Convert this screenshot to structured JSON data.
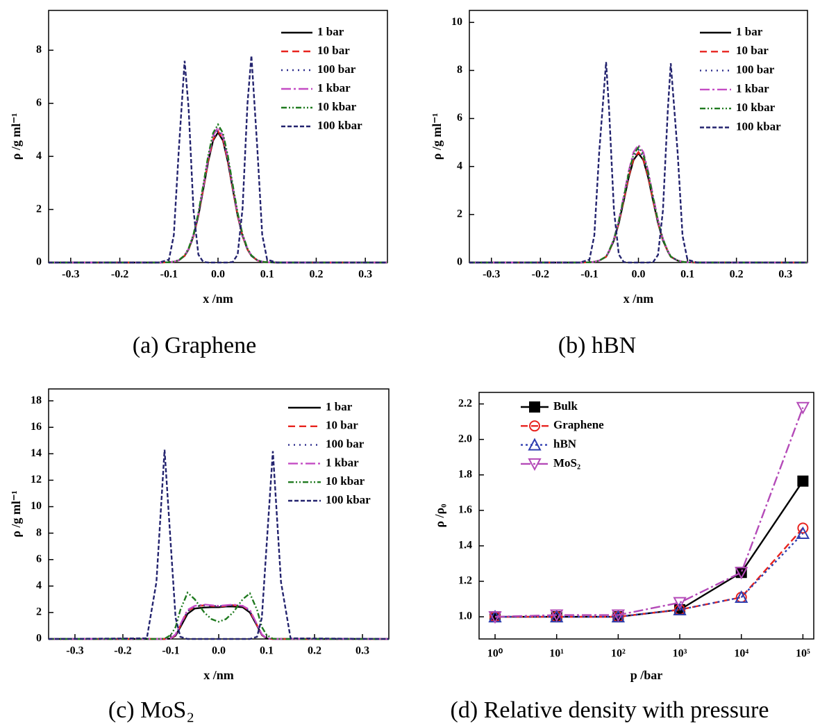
{
  "chart_data": [
    {
      "type": "line",
      "caption": "(a) Graphene",
      "xlabel": "x /nm",
      "ylabel": "ρ /g ml⁻¹",
      "x": [
        -0.345,
        -0.12,
        -0.1,
        -0.09,
        -0.08,
        -0.068,
        -0.06,
        -0.05,
        -0.04,
        -0.03,
        -0.02,
        -0.01,
        0,
        0.01,
        0.02,
        0.03,
        0.04,
        0.05,
        0.06,
        0.068,
        0.08,
        0.09,
        0.1,
        0.12,
        0.345
      ],
      "xlim": [
        -0.345,
        0.345
      ],
      "ylim": [
        0,
        9.5
      ],
      "xticks": [
        -0.3,
        -0.2,
        -0.1,
        {
          "value": 0,
          "label": "0.0"
        },
        0.1,
        0.2,
        0.3
      ],
      "yticks": [
        0,
        2,
        4,
        6,
        8
      ],
      "series": [
        {
          "name": "1 bar",
          "color": "#000000",
          "dash": "none",
          "values": [
            0,
            0,
            0.01,
            0.03,
            0.08,
            0.25,
            0.49,
            0.99,
            1.76,
            2.76,
            3.8,
            4.6,
            4.9,
            4.6,
            3.8,
            2.76,
            1.76,
            0.99,
            0.49,
            0.25,
            0.08,
            0.03,
            0.01,
            0,
            0
          ]
        },
        {
          "name": "10 bar",
          "color": "#e8231e",
          "dash": "10,6",
          "values": [
            0,
            0,
            0.01,
            0.03,
            0.08,
            0.26,
            0.5,
            1.0,
            1.78,
            2.79,
            3.84,
            4.64,
            4.95,
            4.64,
            3.84,
            2.79,
            1.78,
            1.0,
            0.5,
            0.26,
            0.08,
            0.03,
            0.01,
            0,
            0
          ]
        },
        {
          "name": "100 bar",
          "color": "#2b2b8c",
          "dash": "2,6",
          "values": [
            0,
            0,
            0.01,
            0.03,
            0.09,
            0.26,
            0.51,
            1.02,
            1.8,
            2.82,
            3.88,
            4.69,
            5.0,
            4.69,
            3.88,
            2.82,
            1.8,
            1.02,
            0.51,
            0.26,
            0.09,
            0.03,
            0.01,
            0,
            0
          ]
        },
        {
          "name": "1 kbar",
          "color": "#c44cc4",
          "dash": "14,4,3,4",
          "values": [
            0,
            0,
            0.01,
            0.03,
            0.09,
            0.27,
            0.52,
            1.04,
            1.84,
            2.87,
            3.95,
            4.78,
            5.1,
            4.78,
            3.95,
            2.87,
            1.84,
            1.04,
            0.52,
            0.27,
            0.09,
            0.03,
            0.01,
            0,
            0
          ]
        },
        {
          "name": "10 kbar",
          "color": "#1f7a1f",
          "dash": "8,3,2,3,2,3",
          "values": [
            0,
            0,
            0.01,
            0.03,
            0.09,
            0.27,
            0.53,
            1.06,
            1.87,
            2.93,
            4.03,
            4.88,
            5.2,
            4.88,
            4.03,
            2.93,
            1.87,
            1.06,
            0.53,
            0.27,
            0.09,
            0.03,
            0.01,
            0,
            0
          ]
        },
        {
          "name": "100 kbar",
          "color": "#23236e",
          "dash": "6,3",
          "values": [
            0,
            0,
            0.11,
            1.03,
            4.2,
            7.6,
            5.84,
            1.99,
            0.3,
            0.02,
            0,
            0,
            0,
            0,
            0,
            0.02,
            0.3,
            2.04,
            5.99,
            7.8,
            4.31,
            1.05,
            0.11,
            0,
            0
          ]
        }
      ]
    },
    {
      "type": "line",
      "caption": "(b) hBN",
      "xlabel": "x /nm",
      "ylabel": "ρ /g ml⁻¹",
      "x": [
        -0.345,
        -0.12,
        -0.1,
        -0.09,
        -0.08,
        -0.066,
        -0.06,
        -0.05,
        -0.04,
        -0.03,
        -0.02,
        -0.01,
        0,
        0.01,
        0.02,
        0.03,
        0.04,
        0.05,
        0.06,
        0.066,
        0.08,
        0.09,
        0.1,
        0.12,
        0.345
      ],
      "xlim": [
        -0.345,
        0.345
      ],
      "ylim": [
        0,
        10.5
      ],
      "xticks": [
        -0.3,
        -0.2,
        -0.1,
        {
          "value": 0,
          "label": "0.0"
        },
        0.1,
        0.2,
        0.3
      ],
      "yticks": [
        0,
        2,
        4,
        6,
        8,
        10
      ],
      "series": [
        {
          "name": "1 bar",
          "color": "#000000",
          "dash": "none",
          "values": [
            0,
            0,
            0.01,
            0.03,
            0.08,
            0.24,
            0.46,
            0.92,
            1.64,
            2.56,
            3.53,
            4.27,
            4.55,
            4.27,
            3.53,
            2.56,
            1.64,
            0.92,
            0.46,
            0.24,
            0.08,
            0.03,
            0.01,
            0,
            0
          ]
        },
        {
          "name": "10 bar",
          "color": "#e8231e",
          "dash": "10,6",
          "values": [
            0,
            0,
            0.01,
            0.03,
            0.08,
            0.24,
            0.46,
            0.93,
            1.66,
            2.59,
            3.57,
            4.31,
            4.6,
            4.31,
            3.57,
            2.59,
            1.66,
            0.93,
            0.46,
            0.24,
            0.08,
            0.03,
            0.01,
            0,
            0
          ]
        },
        {
          "name": "100 bar",
          "color": "#2b2b8c",
          "dash": "2,6",
          "values": [
            0,
            0,
            0.01,
            0.03,
            0.08,
            0.24,
            0.47,
            0.95,
            1.69,
            2.65,
            3.64,
            4.41,
            4.7,
            4.41,
            3.64,
            2.65,
            1.69,
            0.95,
            0.47,
            0.24,
            0.08,
            0.03,
            0.01,
            0,
            0
          ]
        },
        {
          "name": "1 kbar",
          "color": "#c44cc4",
          "dash": "14,4,3,4",
          "values": [
            0,
            0,
            0.01,
            0.03,
            0.08,
            0.25,
            0.49,
            0.99,
            1.76,
            2.76,
            3.8,
            4.6,
            4.9,
            4.6,
            3.8,
            2.76,
            1.76,
            0.99,
            0.49,
            0.25,
            0.08,
            0.03,
            0.01,
            0,
            0
          ]
        },
        {
          "name": "10 kbar",
          "color": "#1f7a1f",
          "dash": "8,3,2,3,2,3",
          "values": [
            0,
            0,
            0.01,
            0.03,
            0.08,
            0.25,
            0.48,
            0.97,
            1.73,
            2.7,
            3.72,
            4.5,
            4.8,
            4.5,
            3.72,
            2.7,
            1.73,
            0.97,
            0.48,
            0.25,
            0.08,
            0.03,
            0.01,
            0,
            0
          ]
        },
        {
          "name": "100 kbar",
          "color": "#23236e",
          "dash": "6,3",
          "values": [
            0,
            0,
            0.12,
            1.13,
            4.61,
            8.35,
            6.41,
            2.19,
            0.33,
            0.02,
            0,
            0,
            0,
            0,
            0,
            0.02,
            0.32,
            2.17,
            6.37,
            8.3,
            4.58,
            1.12,
            0.12,
            0,
            0
          ]
        }
      ]
    },
    {
      "type": "line",
      "caption": "(c) MoS₂",
      "xlabel": "x /nm",
      "ylabel": "ρ /g ml⁻¹",
      "x": [
        -0.355,
        -0.15,
        -0.13,
        -0.113,
        -0.1,
        -0.09,
        -0.08,
        -0.065,
        -0.05,
        -0.03,
        -0.015,
        0,
        0.015,
        0.03,
        0.05,
        0.065,
        0.08,
        0.09,
        0.1,
        0.113,
        0.13,
        0.15,
        0.355
      ],
      "xlim": [
        -0.355,
        0.355
      ],
      "ylim": [
        0,
        18.9
      ],
      "xticks": [
        -0.3,
        -0.2,
        -0.1,
        {
          "value": 0,
          "label": "0.0"
        },
        0.1,
        0.2,
        0.3
      ],
      "yticks": [
        0,
        2,
        4,
        6,
        8,
        10,
        12,
        14,
        16,
        18
      ],
      "series": [
        {
          "name": "1 bar",
          "color": "#000000",
          "dash": "none",
          "values": [
            0,
            0,
            0,
            0,
            0.03,
            0.25,
            0.9,
            1.9,
            2.3,
            2.38,
            2.4,
            2.4,
            2.45,
            2.45,
            2.4,
            2.0,
            1.0,
            0.3,
            0.03,
            0,
            0,
            0,
            0
          ]
        },
        {
          "name": "10 bar",
          "color": "#e8231e",
          "dash": "10,6",
          "values": [
            0,
            0,
            0,
            0,
            0.04,
            0.3,
            1.0,
            2.1,
            2.45,
            2.55,
            2.5,
            2.45,
            2.5,
            2.55,
            2.5,
            2.1,
            1.05,
            0.33,
            0.04,
            0,
            0,
            0,
            0
          ]
        },
        {
          "name": "100 bar",
          "color": "#2b2b8c",
          "dash": "2,6",
          "values": [
            0,
            0,
            0,
            0,
            0.04,
            0.3,
            1.0,
            2.1,
            2.45,
            2.55,
            2.5,
            2.48,
            2.5,
            2.55,
            2.5,
            2.1,
            1.05,
            0.33,
            0.04,
            0,
            0,
            0,
            0
          ]
        },
        {
          "name": "1 kbar",
          "color": "#c44cc4",
          "dash": "14,4,3,4",
          "values": [
            0,
            0,
            0,
            0,
            0.05,
            0.35,
            1.1,
            2.2,
            2.5,
            2.6,
            2.55,
            2.5,
            2.55,
            2.6,
            2.5,
            2.2,
            1.1,
            0.35,
            0.05,
            0,
            0,
            0,
            0
          ]
        },
        {
          "name": "10 kbar",
          "color": "#1f7a1f",
          "dash": "8,3,2,3,2,3",
          "values": [
            0,
            0,
            0,
            0.02,
            0.3,
            0.9,
            2.2,
            3.5,
            3.0,
            2.0,
            1.5,
            1.3,
            1.5,
            2.0,
            3.0,
            3.45,
            2.2,
            0.9,
            0.3,
            0.02,
            0,
            0,
            0
          ]
        },
        {
          "name": "100 kbar",
          "color": "#23236e",
          "dash": "6,3",
          "values": [
            0,
            0.05,
            4.3,
            14.3,
            7.1,
            1.6,
            0.16,
            0,
            0,
            0,
            0,
            0,
            0,
            0,
            0,
            0,
            0.16,
            1.6,
            7.1,
            14.2,
            4.3,
            0.05,
            0
          ]
        }
      ]
    },
    {
      "type": "line",
      "caption": "(d) Relative density with pressure",
      "xlabel": "p /bar",
      "ylabel": "ρ /ρ₀",
      "xscale": "log",
      "x": [
        1,
        10,
        100,
        1000,
        10000,
        100000
      ],
      "xlim": [
        0.55,
        150000
      ],
      "ylim": [
        0.875,
        2.265
      ],
      "xticks": [
        {
          "value": 1,
          "label": "10⁰"
        },
        {
          "value": 10,
          "label": "10¹"
        },
        {
          "value": 100,
          "label": "10²"
        },
        {
          "value": 1000,
          "label": "10³"
        },
        {
          "value": 10000,
          "label": "10⁴"
        },
        {
          "value": 100000,
          "label": "10⁵"
        }
      ],
      "yticks": [
        {
          "value": 1,
          "label": "1.0"
        },
        1.2,
        1.4,
        1.6,
        1.8,
        {
          "value": 2,
          "label": "2.0"
        },
        2.2
      ],
      "series": [
        {
          "name": "Bulk",
          "color": "#000000",
          "dash": "none",
          "marker": "square",
          "filled": true,
          "values": [
            1.0,
            1.0,
            1.0,
            1.04,
            1.25,
            1.765
          ]
        },
        {
          "name": "Graphene",
          "color": "#e8231e",
          "dash": "10,5",
          "marker": "circle",
          "filled": false,
          "values": [
            1.0,
            1.0,
            1.0,
            1.04,
            1.11,
            1.5
          ]
        },
        {
          "name": "hBN",
          "color": "#2f3fb0",
          "dash": "3,4",
          "marker": "triangle-up",
          "filled": false,
          "values": [
            1.0,
            1.0,
            1.0,
            1.04,
            1.11,
            1.47
          ]
        },
        {
          "name": "MoS₂",
          "color": "#b44ab8",
          "dash": "14,4,3,4",
          "marker": "triangle-down",
          "filled": false,
          "values": [
            1.0,
            1.01,
            1.01,
            1.08,
            1.25,
            2.18
          ]
        }
      ]
    }
  ]
}
